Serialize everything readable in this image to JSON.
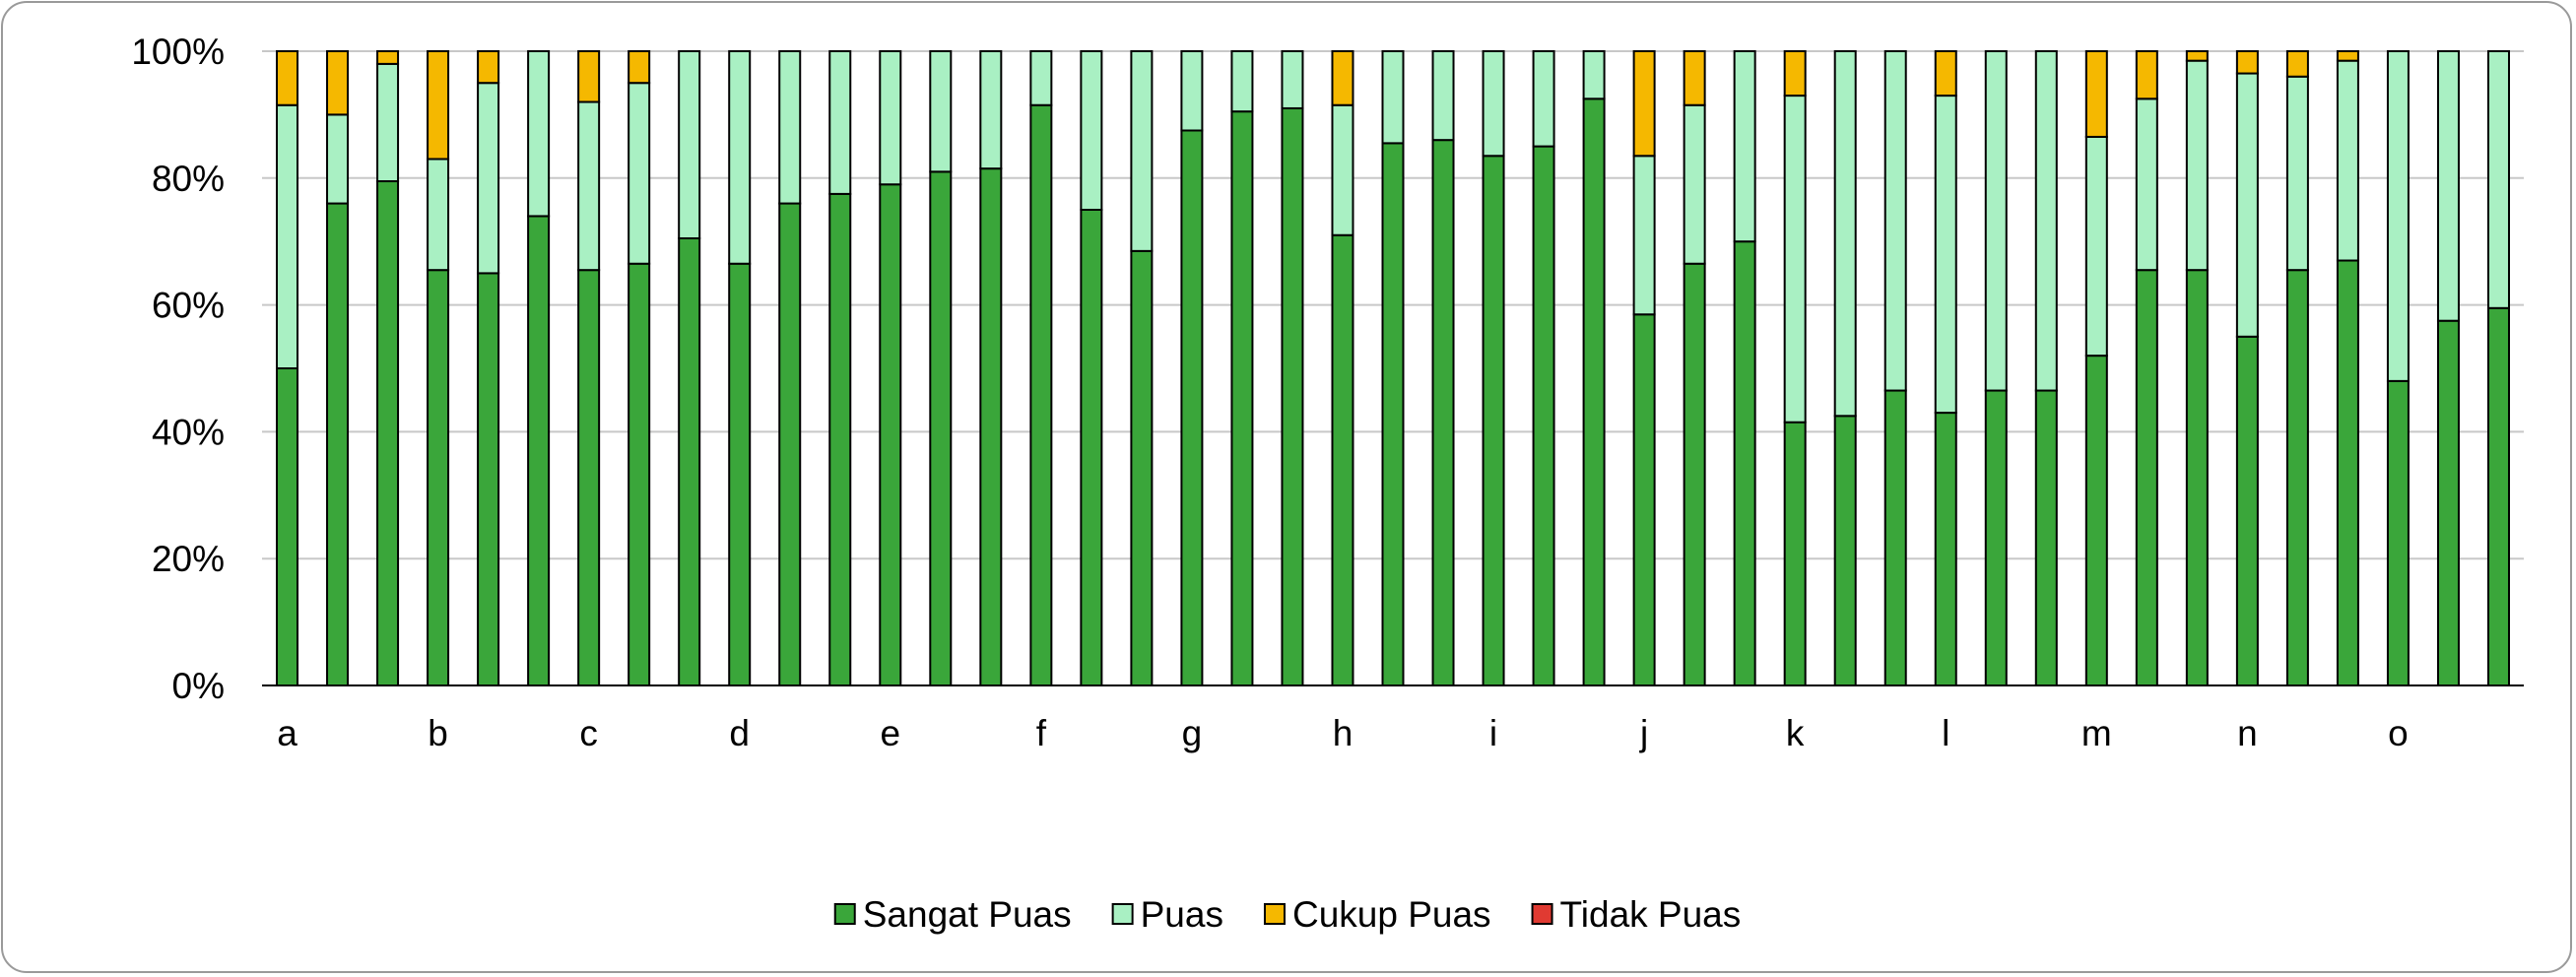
{
  "chart_data": {
    "type": "bar",
    "stacked": true,
    "stack_mode": "percent",
    "title": "",
    "xlabel": "",
    "ylabel": "",
    "ylim": [
      0,
      100
    ],
    "y_ticks": [
      "0%",
      "20%",
      "40%",
      "60%",
      "80%",
      "100%"
    ],
    "grid": true,
    "legend_position": "bottom",
    "category_labels": [
      "a",
      "b",
      "c",
      "d",
      "e",
      "f",
      "g",
      "h",
      "i",
      "j",
      "k",
      "l",
      "m",
      "n",
      "o"
    ],
    "bars_per_category": 3,
    "series": [
      {
        "name": "Sangat Puas",
        "color": "#3aa63a",
        "values": [
          50,
          76,
          79.5,
          65.5,
          65,
          74,
          65.5,
          66.5,
          70.5,
          66.5,
          76,
          77.5,
          79,
          81,
          81.5,
          91.5,
          75,
          68.5,
          87.5,
          90.5,
          91,
          71,
          85.5,
          86,
          83.5,
          85,
          92.5,
          58.5,
          66.5,
          70,
          41.5,
          42.5,
          46.5,
          43,
          46.5,
          46.5,
          52,
          65.5,
          65.5,
          55,
          65.5,
          67,
          48,
          57.5,
          59.5
        ]
      },
      {
        "name": "Puas",
        "color": "#a9f0c3",
        "values": [
          41.5,
          14,
          18.5,
          17.5,
          30,
          26,
          26.5,
          28.5,
          29.5,
          33.5,
          24,
          22.5,
          21,
          19,
          18.5,
          8.5,
          25,
          31.5,
          12.5,
          9.5,
          9,
          20.5,
          14.5,
          14,
          16.5,
          15,
          7.5,
          25,
          25,
          30,
          51.5,
          57.5,
          53.5,
          50,
          53.5,
          53.5,
          34.5,
          27,
          33,
          41.5,
          30.5,
          31.5,
          52,
          42.5,
          40.5
        ]
      },
      {
        "name": "Cukup Puas",
        "color": "#f5b800",
        "values": [
          8.5,
          10,
          2,
          17,
          5,
          0,
          8,
          5,
          0,
          0,
          0,
          0,
          0,
          0,
          0,
          0,
          0,
          0,
          0,
          0,
          0,
          8.5,
          0,
          0,
          0,
          0,
          0,
          16.5,
          8.5,
          0,
          7,
          0,
          0,
          7,
          0,
          0,
          13.5,
          7.5,
          1.5,
          3.5,
          4,
          1.5,
          0,
          0,
          0
        ]
      },
      {
        "name": "Tidak Puas",
        "color": "#e03a32",
        "values": [
          0,
          0,
          0,
          0,
          0,
          0,
          0,
          0,
          0,
          0,
          0,
          0,
          0,
          0,
          0,
          0,
          0,
          0,
          0,
          0,
          0,
          0,
          0,
          0,
          0,
          0,
          0,
          0,
          0,
          0,
          0,
          0,
          0,
          0,
          0,
          0,
          0,
          0,
          0,
          0,
          0,
          0,
          0,
          0,
          0
        ]
      }
    ]
  }
}
